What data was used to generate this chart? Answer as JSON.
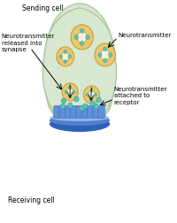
{
  "bg_color": "#ffffff",
  "cell_color": "#d8e8d0",
  "cell_edge": "#a8c8a0",
  "vesicle_outer": "#e8c870",
  "vesicle_ring": "#c8a030",
  "vesicle_inner_bg": "#f5e8b0",
  "nt_dot_fill": "#60c0b8",
  "nt_dot_edge": "#30a090",
  "membrane_dark": "#3060b8",
  "membrane_mid": "#5080d0",
  "membrane_light": "#90b8e8",
  "receptor_dark": "#3868c0",
  "receptor_mid": "#6090d8",
  "labels": {
    "sending_cell": "Sending cell",
    "receiving_cell": "Receiving cell",
    "nt_released": "Neurotransmitter\nreleased into\nsynapse",
    "nt": "Neurotransmitter",
    "nt_receptor": "Neurotransmitter\nattached to\nreceptor"
  }
}
